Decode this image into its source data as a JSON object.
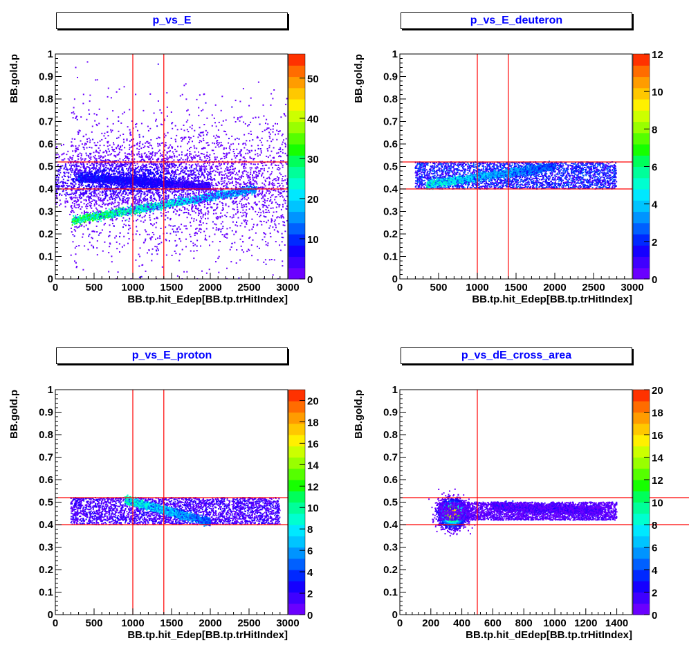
{
  "colors": {
    "palette": "rainbow",
    "guide_lines": "#ff0000",
    "title_text": "#0000ff"
  },
  "chart_data": [
    {
      "type": "heatmap",
      "title": "p_vs_E",
      "xlabel": "BB.tp.hit_Edep[BB.tp.trHitIndex]",
      "ylabel": "BB.gold.p",
      "xlim": [
        0,
        3000
      ],
      "ylim": [
        0,
        1
      ],
      "x_ticks": [
        "0",
        "500",
        "1000",
        "1500",
        "2000",
        "2500",
        "3000"
      ],
      "y_ticks": [
        "0",
        "0.1",
        "0.2",
        "0.3",
        "0.4",
        "0.5",
        "0.6",
        "0.7",
        "0.8",
        "0.9",
        "1"
      ],
      "z_range": [
        0,
        56
      ],
      "z_ticks": [
        "0",
        "10",
        "20",
        "30",
        "40",
        "50"
      ],
      "cut_lines": {
        "vertical": [
          1000,
          1400
        ],
        "horizontal": [
          0.4,
          0.52
        ]
      },
      "features": [
        {
          "shape": "diffuse",
          "x_range": [
            200,
            3000
          ],
          "y_range": [
            0.0,
            1.0
          ],
          "z": 1.5
        },
        {
          "shape": "band",
          "x_range": [
            220,
            2600
          ],
          "y_start": 0.26,
          "y_end": 0.4,
          "z": 36
        },
        {
          "shape": "band",
          "x_range": [
            300,
            2000
          ],
          "y_start": 0.45,
          "y_end": 0.41,
          "z": 12
        },
        {
          "shape": "blob",
          "center": [
            900,
            0.44
          ],
          "spread": [
            800,
            0.06
          ],
          "z": 8
        }
      ]
    },
    {
      "type": "heatmap",
      "title": "p_vs_E_deuteron",
      "xlabel": "BB.tp.hit_Edep[BB.tp.trHitIndex]",
      "ylabel": "BB.gold.p",
      "xlim": [
        0,
        3000
      ],
      "ylim": [
        0,
        1
      ],
      "x_ticks": [
        "0",
        "500",
        "1000",
        "1500",
        "2000",
        "2500",
        "3000"
      ],
      "y_ticks": [
        "0",
        "0.1",
        "0.2",
        "0.3",
        "0.4",
        "0.5",
        "0.6",
        "0.7",
        "0.8",
        "0.9",
        "1"
      ],
      "z_range": [
        0,
        12
      ],
      "z_ticks": [
        "0",
        "2",
        "4",
        "6",
        "8",
        "10",
        "12"
      ],
      "cut_lines": {
        "vertical": [
          1000,
          1400
        ],
        "horizontal": [
          0.4,
          0.52
        ]
      },
      "features": [
        {
          "shape": "box",
          "x_range": [
            200,
            2800
          ],
          "y_range": [
            0.4,
            0.52
          ],
          "z": 1.2
        },
        {
          "shape": "band",
          "x_range": [
            350,
            2000
          ],
          "y_start": 0.42,
          "y_end": 0.5,
          "z": 6
        }
      ]
    },
    {
      "type": "heatmap",
      "title": "p_vs_E_proton",
      "xlabel": "BB.tp.hit_Edep[BB.tp.trHitIndex]",
      "ylabel": "BB.gold.p",
      "xlim": [
        0,
        3000
      ],
      "ylim": [
        0,
        1
      ],
      "x_ticks": [
        "0",
        "500",
        "1000",
        "1500",
        "2000",
        "2500",
        "3000"
      ],
      "y_ticks": [
        "0",
        "0.1",
        "0.2",
        "0.3",
        "0.4",
        "0.5",
        "0.6",
        "0.7",
        "0.8",
        "0.9",
        "1"
      ],
      "z_range": [
        0,
        21
      ],
      "z_ticks": [
        "0",
        "2",
        "4",
        "6",
        "8",
        "10",
        "12",
        "14",
        "16",
        "18",
        "20"
      ],
      "cut_lines": {
        "vertical": [
          1000,
          1400
        ],
        "horizontal": [
          0.4,
          0.52
        ]
      },
      "features": [
        {
          "shape": "box",
          "x_range": [
            200,
            2900
          ],
          "y_range": [
            0.4,
            0.52
          ],
          "z": 1.0
        },
        {
          "shape": "band",
          "x_range": [
            900,
            2000
          ],
          "y_start": 0.51,
          "y_end": 0.41,
          "z": 11
        }
      ]
    },
    {
      "type": "heatmap",
      "title": "p_vs_dE_cross_area",
      "xlabel": "BB.tp.hit_dEdep[BB.tp.trHitIndex]",
      "ylabel": "BB.gold.p",
      "xlim": [
        0,
        1500
      ],
      "ylim": [
        0,
        1
      ],
      "x_ticks": [
        "0",
        "200",
        "400",
        "600",
        "800",
        "1000",
        "1200",
        "1400"
      ],
      "y_ticks": [
        "0",
        "0.1",
        "0.2",
        "0.3",
        "0.4",
        "0.5",
        "0.6",
        "0.7",
        "0.8",
        "0.9",
        "1"
      ],
      "z_range": [
        0,
        20
      ],
      "z_ticks": [
        "0",
        "2",
        "4",
        "6",
        "8",
        "10",
        "12",
        "14",
        "16",
        "18",
        "20"
      ],
      "cut_lines": {
        "vertical": [
          500
        ],
        "horizontal": [
          0.4,
          0.52
        ],
        "horizontal_overflow": true
      },
      "features": [
        {
          "shape": "blob",
          "center": [
            340,
            0.45
          ],
          "spread": [
            45,
            0.03
          ],
          "z": 18
        },
        {
          "shape": "band",
          "x_range": [
            600,
            1300
          ],
          "y_start": 0.48,
          "y_end": 0.46,
          "z": 4
        },
        {
          "shape": "box",
          "x_range": [
            250,
            1400
          ],
          "y_range": [
            0.42,
            0.5
          ],
          "z": 0.6
        }
      ]
    }
  ]
}
